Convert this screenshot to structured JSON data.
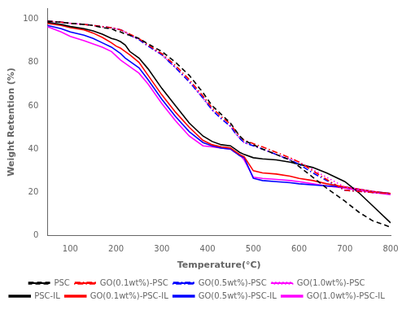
{
  "chart_data": {
    "type": "line",
    "xlabel": "Temperature(°C)",
    "ylabel": "Weight Retention (%)",
    "xlim": [
      50,
      800
    ],
    "ylim": [
      0,
      105
    ],
    "xticks": [
      100,
      200,
      300,
      400,
      500,
      600,
      700,
      800
    ],
    "yticks": [
      0,
      20,
      40,
      60,
      80,
      100
    ],
    "grid": false,
    "legend": "bottom",
    "x": [
      50,
      80,
      100,
      130,
      150,
      170,
      190,
      200,
      210,
      220,
      230,
      250,
      270,
      300,
      330,
      360,
      390,
      410,
      430,
      450,
      460,
      470,
      480,
      500,
      520,
      550,
      580,
      600,
      630,
      660,
      700,
      730,
      760,
      800
    ],
    "series": [
      {
        "name": "PSC",
        "color": "black",
        "line_style": "dashed",
        "values": [
          99.0,
          98.5,
          98.0,
          97.5,
          97.0,
          96.0,
          95.5,
          94.5,
          94.0,
          93.0,
          92.5,
          91.0,
          88.5,
          85.0,
          80.0,
          74.0,
          66.0,
          60.0,
          56.0,
          52.0,
          49.0,
          46.0,
          44.0,
          42.0,
          40.0,
          37.5,
          35.0,
          32.0,
          27.0,
          22.0,
          16.0,
          11.0,
          7.0,
          4.0
        ]
      },
      {
        "name": "GO(0.1wt%)-PSC",
        "color": "#ff0000",
        "line_style": "dashdot",
        "values": [
          99.0,
          98.5,
          98.0,
          97.5,
          97.0,
          96.5,
          96.0,
          95.5,
          95.0,
          94.0,
          93.0,
          91.0,
          88.0,
          84.0,
          78.5,
          72.0,
          64.5,
          59.0,
          55.0,
          51.5,
          48.5,
          46.0,
          44.0,
          42.5,
          41.0,
          38.5,
          36.0,
          34.0,
          30.0,
          26.0,
          21.0,
          20.5,
          20.0,
          19.5
        ]
      },
      {
        "name": "GO(0.5wt%)-PSC",
        "color": "#0000ff",
        "line_style": "dashdot",
        "values": [
          99.0,
          98.5,
          98.0,
          97.5,
          97.0,
          96.5,
          96.0,
          95.5,
          95.0,
          94.0,
          92.5,
          90.5,
          87.5,
          83.5,
          77.5,
          71.0,
          63.5,
          58.0,
          54.0,
          50.5,
          47.5,
          45.0,
          43.0,
          41.5,
          40.0,
          37.5,
          35.0,
          33.0,
          29.0,
          25.5,
          21.0,
          20.5,
          20.0,
          19.5
        ]
      },
      {
        "name": "GO(1.0wt%)-PSC",
        "color": "#ff00ff",
        "line_style": "dotted",
        "values": [
          99.0,
          98.5,
          98.0,
          97.5,
          97.0,
          96.5,
          96.0,
          95.5,
          95.0,
          94.0,
          92.5,
          90.5,
          87.5,
          83.5,
          77.5,
          71.0,
          63.5,
          58.0,
          54.0,
          50.5,
          47.5,
          45.0,
          43.0,
          41.5,
          40.0,
          37.5,
          35.5,
          34.0,
          30.5,
          27.0,
          22.5,
          21.5,
          20.5,
          19.0
        ]
      },
      {
        "name": "PSC-IL",
        "color": "black",
        "line_style": "solid",
        "values": [
          98.5,
          97.5,
          96.5,
          95.5,
          94.5,
          93.0,
          91.0,
          90.5,
          89.5,
          88.0,
          85.0,
          82.0,
          77.0,
          68.0,
          60.0,
          52.0,
          46.0,
          43.5,
          42.0,
          41.5,
          40.0,
          38.5,
          37.5,
          36.0,
          35.5,
          35.0,
          34.0,
          33.0,
          31.5,
          29.0,
          25.0,
          20.0,
          14.0,
          6.0
        ]
      },
      {
        "name": "GO(0.1wt%)-PSC-IL",
        "color": "#ff0000",
        "line_style": "solid",
        "values": [
          98.0,
          97.0,
          96.0,
          95.0,
          93.5,
          91.5,
          89.0,
          87.5,
          86.5,
          85.0,
          83.5,
          80.0,
          74.0,
          65.0,
          57.0,
          50.0,
          44.0,
          42.0,
          41.0,
          40.5,
          39.0,
          37.5,
          36.5,
          30.0,
          29.0,
          28.5,
          27.5,
          26.5,
          25.5,
          24.0,
          22.5,
          21.5,
          20.5,
          19.5
        ]
      },
      {
        "name": "GO(0.5wt%)-PSC-IL",
        "color": "#0000ff",
        "line_style": "solid",
        "values": [
          97.0,
          95.5,
          94.0,
          92.5,
          91.0,
          89.0,
          87.0,
          85.5,
          84.0,
          82.0,
          80.5,
          77.5,
          72.0,
          63.0,
          55.0,
          48.0,
          43.0,
          41.5,
          40.5,
          40.0,
          38.5,
          37.0,
          36.0,
          26.5,
          25.5,
          25.0,
          24.5,
          24.0,
          23.5,
          23.0,
          22.5,
          21.5,
          20.5,
          19.5
        ]
      },
      {
        "name": "GO(1.0wt%)-PSC-IL",
        "color": "#ff00ff",
        "line_style": "solid",
        "values": [
          96.5,
          94.0,
          92.0,
          90.0,
          88.5,
          87.0,
          85.0,
          83.0,
          81.0,
          79.5,
          78.0,
          75.0,
          70.0,
          61.0,
          53.0,
          46.0,
          41.5,
          41.0,
          40.5,
          40.0,
          38.5,
          37.5,
          35.0,
          27.0,
          26.5,
          26.0,
          25.5,
          25.0,
          24.0,
          23.0,
          22.0,
          21.0,
          20.0,
          19.0
        ]
      }
    ]
  }
}
